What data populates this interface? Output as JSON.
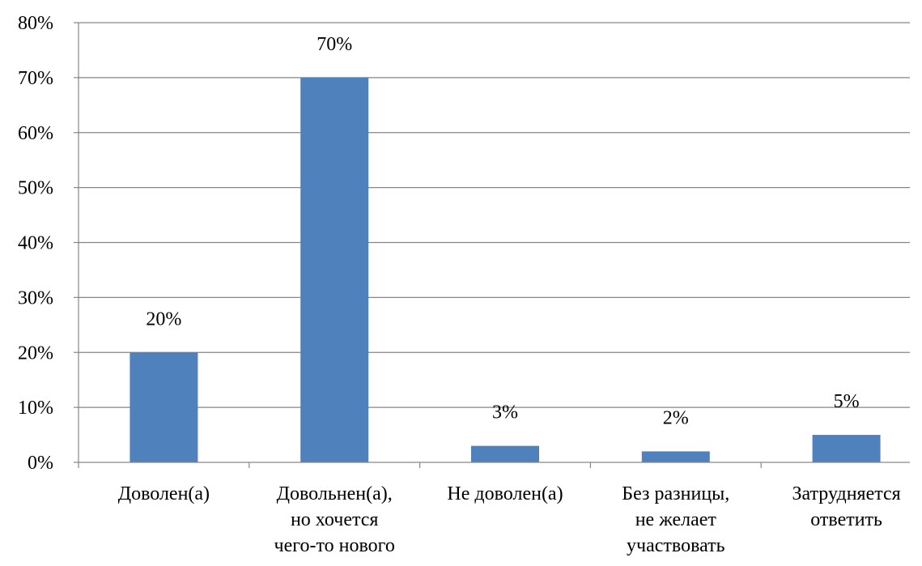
{
  "chart_data": {
    "type": "bar",
    "categories": [
      [
        "Доволен(а)"
      ],
      [
        "Довольнен(а),",
        "но хочется",
        "чего-то нового"
      ],
      [
        "Не доволен(а)"
      ],
      [
        "Без разницы,",
        "не желает",
        "участвовать"
      ],
      [
        "Затрудняется",
        "ответить"
      ]
    ],
    "values": [
      20,
      70,
      3,
      2,
      5
    ],
    "data_labels": [
      "20%",
      "70%",
      "3%",
      "2%",
      "5%"
    ],
    "y_ticks": [
      {
        "value": 0,
        "label": "0%"
      },
      {
        "value": 10,
        "label": "10%"
      },
      {
        "value": 20,
        "label": "20%"
      },
      {
        "value": 30,
        "label": "30%"
      },
      {
        "value": 40,
        "label": "40%"
      },
      {
        "value": 50,
        "label": "50%"
      },
      {
        "value": 60,
        "label": "60%"
      },
      {
        "value": 70,
        "label": "70%"
      },
      {
        "value": 80,
        "label": "80%"
      }
    ],
    "ylim": [
      0,
      80
    ],
    "grid": true,
    "legend": "none",
    "colors": {
      "bar": "#4F81BD",
      "grid": "#868686",
      "axis": "#868686"
    }
  }
}
